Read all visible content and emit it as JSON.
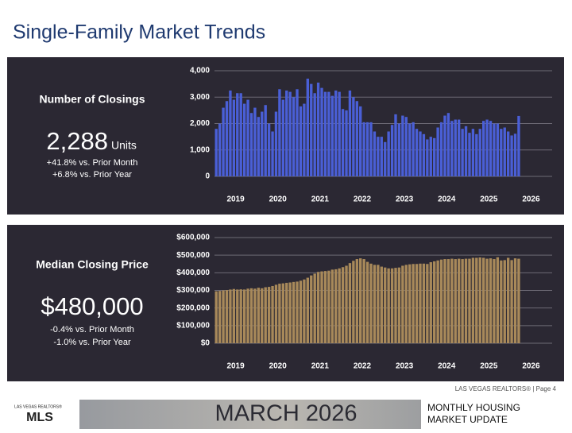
{
  "header": {
    "title": "Single-Family Market Trends"
  },
  "panels": [
    {
      "label": "Number of Closings",
      "value": "2,288",
      "unit": "Units",
      "changes": [
        "+41.8% vs. Prior Month",
        "+6.8% vs. Prior Year"
      ]
    },
    {
      "label": "Median Closing Price",
      "value": "$480,000",
      "changes": [
        "-0.4% vs. Prior Month",
        "-1.0% vs. Prior Year"
      ]
    }
  ],
  "chart_data": [
    {
      "type": "bar",
      "color": "#4a5fd6",
      "grid": true,
      "categories": [
        null,
        null,
        null,
        null,
        null,
        null,
        null,
        null,
        null,
        null,
        null,
        null,
        null,
        null,
        null,
        null,
        null,
        null,
        null,
        null,
        null,
        null,
        null,
        null,
        null,
        null,
        null,
        null,
        null,
        null,
        null,
        null,
        null,
        null,
        null,
        null,
        null,
        null,
        null,
        null,
        null,
        null,
        null,
        null,
        null,
        null,
        null,
        null,
        null,
        null,
        null,
        null,
        null,
        null,
        null,
        null,
        null,
        null,
        null,
        null,
        null,
        null,
        null,
        null,
        null,
        null,
        null,
        null,
        null,
        null,
        null,
        null,
        null,
        null,
        null,
        null,
        null,
        null,
        null,
        null,
        null,
        null,
        null,
        null,
        null,
        null,
        null
      ],
      "values": [
        1800,
        2000,
        2600,
        2850,
        3250,
        2900,
        3150,
        3150,
        2750,
        2900,
        2400,
        2600,
        2250,
        2450,
        2700,
        2000,
        1700,
        2450,
        3300,
        2900,
        3250,
        3200,
        3000,
        3300,
        2650,
        2750,
        3700,
        3500,
        3150,
        3550,
        3350,
        3200,
        3200,
        3050,
        3250,
        3200,
        2550,
        2500,
        3250,
        3000,
        2850,
        2650,
        2050,
        2050,
        2050,
        1700,
        1500,
        1500,
        1300,
        1700,
        1950,
        2350,
        2000,
        2300,
        2250,
        2000,
        2050,
        1800,
        1700,
        1600,
        1400,
        1500,
        1450,
        1850,
        2050,
        2300,
        2400,
        2100,
        2150,
        2150,
        1800,
        1900,
        1650,
        1800,
        1600,
        1800,
        2100,
        2150,
        2100,
        2000,
        2000,
        1800,
        1850,
        1700,
        1550,
        1614,
        2288
      ],
      "xlim": [
        0,
        96
      ],
      "xticks": [
        {
          "value": 6,
          "label": "2019"
        },
        {
          "value": 18,
          "label": "2020"
        },
        {
          "value": 30,
          "label": "2021"
        },
        {
          "value": 42,
          "label": "2022"
        },
        {
          "value": 54,
          "label": "2023"
        },
        {
          "value": 66,
          "label": "2024"
        },
        {
          "value": 78,
          "label": "2025"
        },
        {
          "value": 90,
          "label": "2026"
        }
      ],
      "ylim": [
        0,
        4000
      ],
      "yticks": [
        0,
        {
          "value": 1000,
          "label": "1,000"
        },
        {
          "value": 2000,
          "label": "2,000"
        },
        {
          "value": 3000,
          "label": "3,000"
        },
        {
          "value": 4000,
          "label": "4,000"
        }
      ]
    },
    {
      "type": "bar",
      "color": "#a8895a",
      "grid": true,
      "categories": [
        null,
        null,
        null,
        null,
        null,
        null,
        null,
        null,
        null,
        null,
        null,
        null,
        null,
        null,
        null,
        null,
        null,
        null,
        null,
        null,
        null,
        null,
        null,
        null,
        null,
        null,
        null,
        null,
        null,
        null,
        null,
        null,
        null,
        null,
        null,
        null,
        null,
        null,
        null,
        null,
        null,
        null,
        null,
        null,
        null,
        null,
        null,
        null,
        null,
        null,
        null,
        null,
        null,
        null,
        null,
        null,
        null,
        null,
        null,
        null,
        null,
        null,
        null,
        null,
        null,
        null,
        null,
        null,
        null,
        null,
        null,
        null,
        null,
        null,
        null,
        null,
        null,
        null,
        null,
        null,
        null,
        null,
        null,
        null,
        null,
        null,
        null
      ],
      "values": [
        295000,
        297000,
        300000,
        302000,
        305000,
        308000,
        305000,
        306000,
        305000,
        310000,
        312000,
        310000,
        315000,
        312000,
        318000,
        320000,
        325000,
        332000,
        338000,
        340000,
        343000,
        345000,
        348000,
        350000,
        355000,
        362000,
        372000,
        385000,
        395000,
        405000,
        408000,
        410000,
        412000,
        418000,
        420000,
        425000,
        432000,
        440000,
        455000,
        468000,
        478000,
        482000,
        478000,
        462000,
        452000,
        445000,
        445000,
        435000,
        430000,
        425000,
        425000,
        428000,
        430000,
        440000,
        445000,
        448000,
        450000,
        450000,
        452000,
        452000,
        450000,
        460000,
        465000,
        470000,
        475000,
        478000,
        478000,
        480000,
        478000,
        480000,
        478000,
        480000,
        480000,
        485000,
        485000,
        487000,
        485000,
        480000,
        482000,
        478000,
        488000,
        470000,
        472000,
        485000,
        472000,
        482000,
        480000
      ],
      "xlim": [
        0,
        96
      ],
      "xticks": [
        {
          "value": 6,
          "label": "2019"
        },
        {
          "value": 18,
          "label": "2020"
        },
        {
          "value": 30,
          "label": "2021"
        },
        {
          "value": 42,
          "label": "2022"
        },
        {
          "value": 54,
          "label": "2023"
        },
        {
          "value": 66,
          "label": "2024"
        },
        {
          "value": 78,
          "label": "2025"
        },
        {
          "value": 90,
          "label": "2026"
        }
      ],
      "ylim": [
        0,
        600000
      ],
      "yticks": [
        {
          "value": 0,
          "label": "$0"
        },
        {
          "value": 100000,
          "label": "$100,000"
        },
        {
          "value": 200000,
          "label": "$200,000"
        },
        {
          "value": 300000,
          "label": "$300,000"
        },
        {
          "value": 400000,
          "label": "$400,000"
        },
        {
          "value": 500000,
          "label": "$500,000"
        },
        {
          "value": 600000,
          "label": "$600,000"
        }
      ]
    }
  ],
  "footer": {
    "page": "LAS VEGAS REALTORS® | Page 4",
    "logo_top": "LAS VEGAS REALTORS®",
    "logo": "MLS",
    "month": "MARCH 2026",
    "label_1": "MONTHLY HOUSING",
    "label_2": "MARKET UPDATE"
  }
}
